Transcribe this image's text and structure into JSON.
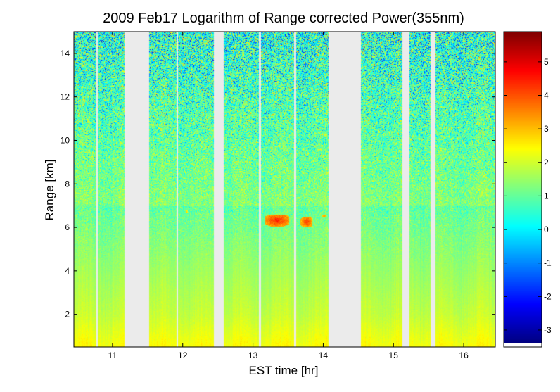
{
  "chart_data": {
    "type": "heatmap",
    "title": "2009 Feb17  Logarithm of Range corrected Power(355nm)",
    "xlabel": "EST time [hr]",
    "ylabel": "Range [km]",
    "xlim": [
      10.45,
      16.45
    ],
    "ylim": [
      0.5,
      15
    ],
    "x_ticks": [
      "11",
      "12",
      "13",
      "14",
      "15",
      "16"
    ],
    "y_ticks": [
      "2",
      "4",
      "6",
      "8",
      "10",
      "12",
      "14"
    ],
    "colorbar": {
      "colormap": "jet",
      "range": [
        -3.4,
        5.9
      ],
      "ticks": [
        "-3",
        "-2",
        "-1",
        "0",
        "1",
        "2",
        "3",
        "4",
        "5"
      ]
    },
    "data_gaps_hr": [
      [
        11.17,
        11.52
      ],
      [
        12.44,
        12.58
      ],
      [
        14.08,
        14.54
      ],
      [
        15.13,
        15.23
      ],
      [
        15.53,
        15.6
      ]
    ],
    "thin_gaps_hr": [
      10.78,
      11.92,
      13.1,
      13.6
    ],
    "cloud_layers": [
      {
        "x": [
          13.17,
          13.52
        ],
        "range_km": [
          6.05,
          6.6
        ],
        "value": 4.5
      },
      {
        "x": [
          13.68,
          13.85
        ],
        "range_km": [
          6.0,
          6.5
        ],
        "value": 4.3
      },
      {
        "x": [
          13.98,
          14.05
        ],
        "range_km": [
          6.45,
          6.6
        ],
        "value": 3.6
      },
      {
        "x": [
          12.04,
          12.07
        ],
        "range_km": [
          6.65,
          6.8
        ],
        "value": 3.2
      }
    ],
    "profile_summary": {
      "near_surface_value": 2.4,
      "mid_range_value": 1.3,
      "upper_range_value": 0.3,
      "noise_increases_with_range": true
    },
    "grid": false
  }
}
